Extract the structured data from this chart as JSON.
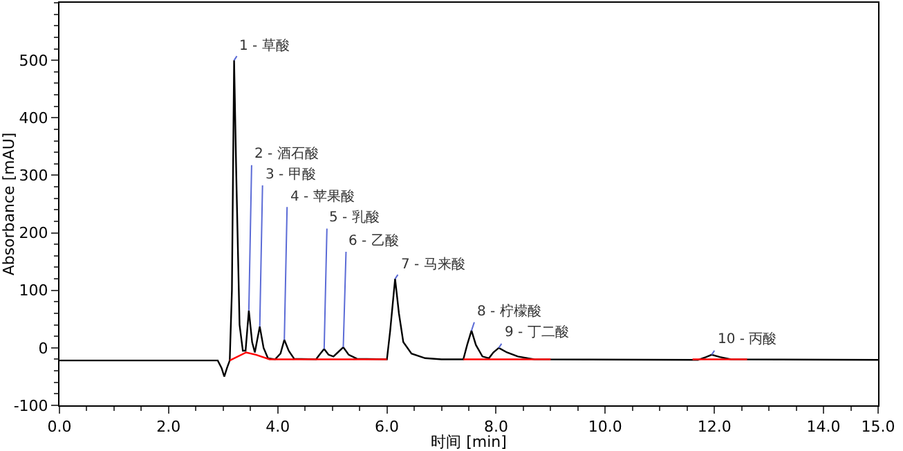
{
  "chart_data": {
    "type": "line",
    "xlabel": "时间 [min]",
    "ylabel": "Absorbance [mAU]",
    "xlim": [
      0,
      15
    ],
    "xticks": [
      {
        "value": 0,
        "label": "0.0"
      },
      {
        "value": 2,
        "label": "2.0"
      },
      {
        "value": 4,
        "label": "4.0"
      },
      {
        "value": 6,
        "label": "6.0"
      },
      {
        "value": 8,
        "label": "8.0"
      },
      {
        "value": 10,
        "label": "10.0"
      },
      {
        "value": 12,
        "label": "12.0"
      },
      {
        "value": 14,
        "label": "14.0"
      },
      {
        "value": 15,
        "label": "15.0"
      }
    ],
    "ylim": [
      -100,
      600
    ],
    "yticks": [
      -100,
      0,
      100,
      200,
      300,
      400,
      500
    ],
    "grid": false,
    "marker": "none",
    "line_style": "solid",
    "series": [
      {
        "color": "#000000",
        "x": [
          0,
          2.9,
          2.97,
          3.02,
          3.07,
          3.12,
          3.16,
          3.2,
          3.24,
          3.3,
          3.36,
          3.41,
          3.47,
          3.53,
          3.58,
          3.67,
          3.74,
          3.82,
          3.95,
          4.05,
          4.12,
          4.2,
          4.3,
          4.7,
          4.78,
          4.85,
          4.93,
          5.02,
          5.1,
          5.2,
          5.3,
          5.45,
          6.0,
          6.06,
          6.15,
          6.22,
          6.3,
          6.45,
          6.7,
          7.0,
          7.4,
          7.47,
          7.55,
          7.63,
          7.75,
          7.87,
          7.95,
          8.05,
          8.2,
          8.4,
          8.7,
          11.7,
          11.85,
          11.95,
          12.1,
          12.3,
          15
        ],
        "values": [
          -22,
          -22,
          -35,
          -50,
          -35,
          -22,
          100,
          500,
          300,
          40,
          -5,
          -5,
          65,
          10,
          -8,
          37,
          0,
          -18,
          -20,
          -10,
          14,
          -5,
          -19,
          -20,
          -10,
          -2,
          -12,
          -15,
          -8,
          1,
          -12,
          -19,
          -20,
          30,
          120,
          60,
          10,
          -10,
          -18,
          -20,
          -20,
          5,
          30,
          5,
          -15,
          -18,
          -8,
          0,
          -8,
          -15,
          -20,
          -21,
          -16,
          -12,
          -16,
          -20,
          -21
        ]
      },
      {
        "color": "#ff0000",
        "x": [
          3.12,
          3.42,
          3.6,
          3.85,
          6.0,
          6.01,
          7.4,
          9.0,
          9.01,
          11.6,
          12.6
        ],
        "values": [
          -22,
          -8,
          -12,
          -20,
          -20,
          null,
          -20,
          -20,
          null,
          -20,
          -20
        ]
      }
    ],
    "annotations": [
      {
        "text": "1 - 草酸",
        "x": 3.2,
        "y": 500
      },
      {
        "text": "2 - 酒石酸",
        "x": 3.47,
        "y": 65
      },
      {
        "text": "3 - 甲酸",
        "x": 3.67,
        "y": 37
      },
      {
        "text": "4 - 苹果酸",
        "x": 4.12,
        "y": 14
      },
      {
        "text": "5 - 乳酸",
        "x": 4.85,
        "y": -2
      },
      {
        "text": "6 - 乙酸",
        "x": 5.2,
        "y": 1
      },
      {
        "text": "7 - 马来酸",
        "x": 6.15,
        "y": 120
      },
      {
        "text": "8 - 柠檬酸",
        "x": 7.55,
        "y": 30
      },
      {
        "text": "9 - 丁二酸",
        "x": 8.05,
        "y": 0
      },
      {
        "text": "10 - 丙酸",
        "x": 11.95,
        "y": -12
      }
    ]
  }
}
